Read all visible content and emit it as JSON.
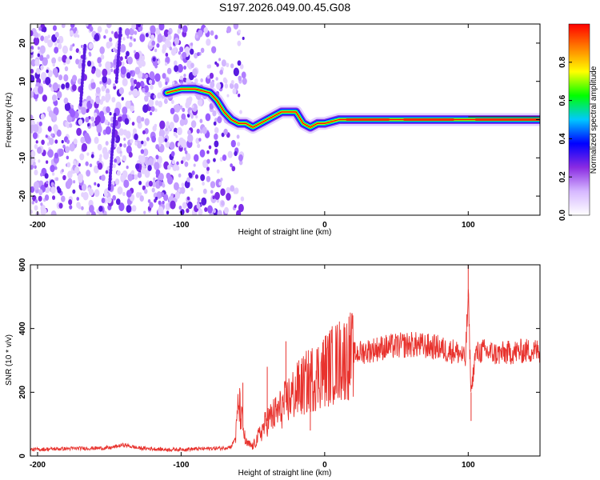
{
  "figure_title": "S197.2026.049.00.45.G08",
  "chart_data": [
    {
      "type": "heatmap",
      "xlabel": "Height of straight line (km)",
      "ylabel": "Frequency (Hz)",
      "xlim": [
        -205,
        150
      ],
      "ylim": [
        -25,
        25
      ],
      "xticks": [
        -200,
        -100,
        0,
        100
      ],
      "yticks": [
        -20,
        -10,
        0,
        10,
        20
      ],
      "colorbar": {
        "label": "Normalized spectral amplitude",
        "range": [
          0.0,
          1.0
        ],
        "ticks": [
          0.0,
          0.2,
          0.4,
          0.6,
          0.8
        ],
        "tick_labels": [
          "0.0",
          "0.2",
          "0.4",
          "0.6",
          "0.8"
        ],
        "colors": [
          "#ffffff",
          "#d6b8ff",
          "#8a2be2",
          "#0000ff",
          "#00c8ff",
          "#00ff00",
          "#ffff00",
          "#ff8000",
          "#ff0000"
        ]
      },
      "ridge": {
        "name": "dominant frequency track",
        "x": [
          -110,
          -100,
          -90,
          -80,
          -75,
          -70,
          -65,
          -60,
          -55,
          -50,
          -45,
          -40,
          -35,
          -30,
          -25,
          -20,
          -15,
          -10,
          -5,
          0,
          10,
          20,
          40,
          60,
          80,
          95,
          100,
          110,
          130,
          150
        ],
        "y": [
          7,
          8,
          8,
          7,
          5,
          2,
          0,
          -1,
          -1,
          -2,
          -1,
          0,
          1,
          2,
          2,
          2,
          -1,
          -2,
          -1,
          -1,
          0,
          0,
          0,
          0,
          0,
          0,
          0,
          0,
          0,
          0
        ]
      },
      "noise_region_x": [
        -205,
        -55
      ]
    },
    {
      "type": "line",
      "xlabel": "Height of straight line (km)",
      "ylabel": "SNR (10 * v/v)",
      "xlim": [
        -205,
        150
      ],
      "ylim": [
        0,
        600
      ],
      "xticks": [
        -200,
        -100,
        0,
        100
      ],
      "yticks": [
        0,
        200,
        400,
        600
      ],
      "series": [
        {
          "name": "SNR",
          "color": "#e8322d",
          "x": [
            -205,
            -190,
            -170,
            -150,
            -140,
            -130,
            -110,
            -90,
            -70,
            -65,
            -62,
            -60,
            -55,
            -50,
            -45,
            -40,
            -35,
            -30,
            -25,
            -20,
            -15,
            -10,
            0,
            10,
            20,
            30,
            40,
            50,
            60,
            70,
            80,
            85,
            90,
            95,
            98,
            100,
            102,
            105,
            110,
            120,
            130,
            140,
            150
          ],
          "y": [
            20,
            22,
            24,
            25,
            35,
            25,
            20,
            22,
            25,
            30,
            60,
            170,
            40,
            30,
            70,
            110,
            130,
            150,
            180,
            200,
            220,
            240,
            270,
            300,
            320,
            330,
            340,
            345,
            350,
            345,
            340,
            330,
            330,
            320,
            300,
            500,
            200,
            320,
            330,
            320,
            325,
            330,
            330
          ]
        }
      ],
      "spikes": [
        {
          "x": -57,
          "y": 230
        },
        {
          "x": -40,
          "y": 280
        },
        {
          "x": -27,
          "y": 360
        },
        {
          "x": -18,
          "y": 300
        },
        {
          "x": -10,
          "y": 80
        },
        {
          "x": 100,
          "y": 600
        },
        {
          "x": 102,
          "y": 110
        }
      ]
    }
  ]
}
